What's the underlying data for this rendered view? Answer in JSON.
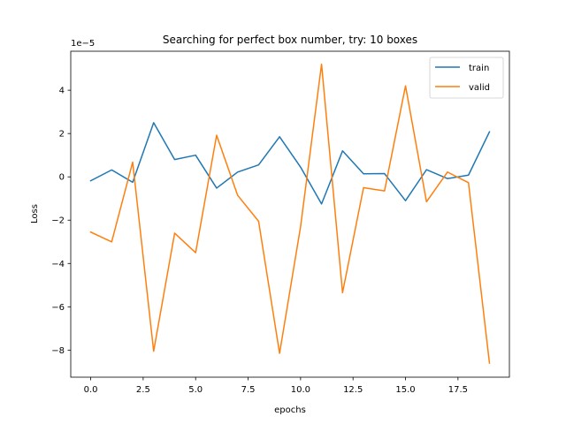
{
  "chart_data": {
    "type": "line",
    "title": "Searching for perfect box number, try: 10 boxes",
    "xlabel": "epochs",
    "ylabel": "Loss",
    "y_offset_label": "1e−5",
    "xlim": [
      -0.95,
      19.95
    ],
    "ylim": [
      -9.25,
      5.8
    ],
    "x_ticks": [
      0.0,
      2.5,
      5.0,
      7.5,
      10.0,
      12.5,
      15.0,
      17.5
    ],
    "x_tick_labels": [
      "0.0",
      "2.5",
      "5.0",
      "7.5",
      "10.0",
      "12.5",
      "15.0",
      "17.5"
    ],
    "y_ticks": [
      -8,
      -6,
      -4,
      -2,
      0,
      2,
      4
    ],
    "y_tick_labels": [
      "−8",
      "−6",
      "−4",
      "−2",
      "0",
      "2",
      "4"
    ],
    "grid": false,
    "legend_position": "top-right",
    "x": [
      0,
      1,
      2,
      3,
      4,
      5,
      6,
      7,
      8,
      9,
      10,
      11,
      12,
      13,
      14,
      15,
      16,
      17,
      18,
      19
    ],
    "series": [
      {
        "name": "train",
        "color": "#1f77b4",
        "values": [
          -0.18,
          0.32,
          -0.25,
          2.5,
          0.8,
          1.0,
          -0.52,
          0.22,
          0.55,
          1.85,
          0.45,
          -1.25,
          1.2,
          0.14,
          0.15,
          -1.1,
          0.33,
          -0.08,
          0.08,
          2.08
        ]
      },
      {
        "name": "valid",
        "color": "#ff7f0e",
        "values": [
          -2.55,
          -3.0,
          0.68,
          -8.05,
          -2.6,
          -3.5,
          1.92,
          -0.85,
          -2.05,
          -8.15,
          -2.3,
          5.2,
          -5.35,
          -0.5,
          -0.65,
          4.2,
          -1.15,
          0.22,
          -0.27,
          -8.6
        ]
      }
    ]
  }
}
